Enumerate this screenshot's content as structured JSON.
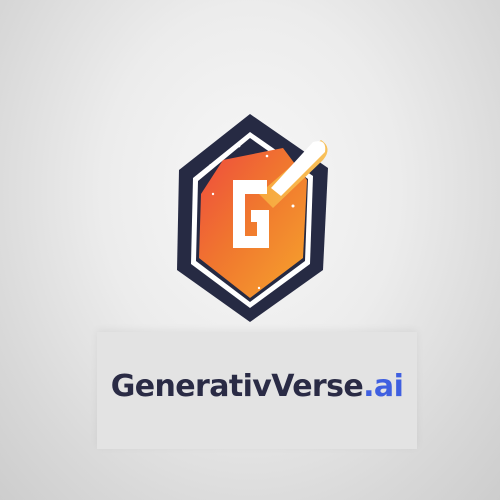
{
  "logo": {
    "icon": "shield-g-icon",
    "letter": "G"
  },
  "wordmark": {
    "name": "GenerativeVerse",
    "name_display": "GenerativVerse",
    "ext": ".ai"
  },
  "colors": {
    "navy": "#262a43",
    "orange": "#f0762f",
    "amber": "#f6a52c",
    "coral": "#ee4a3e",
    "white": "#ffffff",
    "blue": "#3f5fe0"
  }
}
